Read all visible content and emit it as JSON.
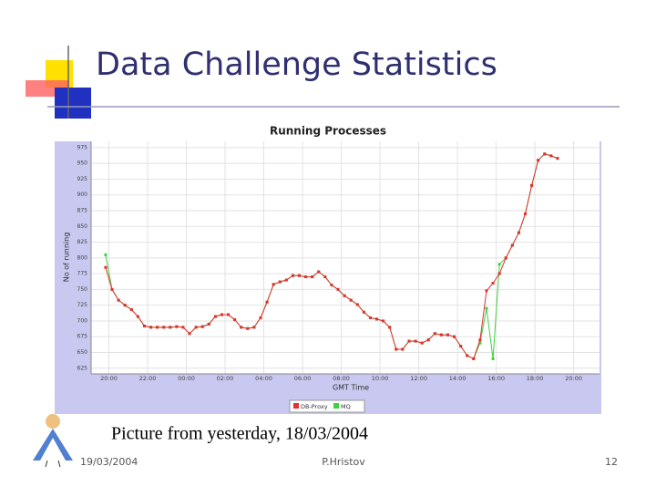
{
  "slide_title": "Data Challenge Statistics",
  "caption": "Picture from yesterday, 18/03/2004",
  "footer": {
    "date": "19/03/2004",
    "author": "P.Hristov",
    "page": "12"
  },
  "chart_data": {
    "type": "line",
    "title": "Running Processes",
    "x_label": "GMT Time",
    "y_label": "No of running",
    "x": [
      -10,
      10,
      30,
      50,
      70,
      90,
      110,
      130,
      150,
      170,
      190,
      210,
      230,
      250,
      270,
      290,
      310,
      330,
      350,
      370,
      390,
      410,
      430,
      450,
      470,
      490,
      510,
      530,
      550,
      570,
      590,
      610,
      630,
      650,
      670,
      690,
      710,
      730,
      750,
      770,
      790,
      810,
      830,
      850,
      870,
      890,
      910,
      930,
      950,
      970,
      990,
      1010,
      1030,
      1050,
      1070,
      1090,
      1110,
      1130,
      1150,
      1170,
      1190,
      1210,
      1230,
      1250,
      1270,
      1290,
      1310,
      1330,
      1350,
      1370,
      1390
    ],
    "series": [
      {
        "name": "DB-Proxy",
        "color": "#e03030",
        "values": [
          785,
          750,
          733,
          725,
          718,
          707,
          692,
          690,
          690,
          690,
          690,
          691,
          690,
          680,
          690,
          691,
          695,
          707,
          710,
          710,
          702,
          690,
          688,
          690,
          705,
          730,
          758,
          762,
          765,
          772,
          772,
          770,
          770,
          778,
          770,
          757,
          750,
          740,
          733,
          726,
          714,
          705,
          703,
          700,
          690,
          655,
          655,
          668,
          668,
          665,
          670,
          680,
          678,
          678,
          675,
          660,
          645,
          640,
          670,
          748,
          760,
          775,
          800,
          820,
          840,
          870,
          915,
          955,
          965,
          962,
          958
        ]
      },
      {
        "name": "MQ",
        "color": "#40d040",
        "values": [
          805,
          750,
          733,
          725,
          718,
          707,
          692,
          690,
          690,
          690,
          690,
          691,
          690,
          680,
          690,
          691,
          695,
          707,
          710,
          710,
          702,
          690,
          688,
          690,
          705,
          730,
          758,
          762,
          765,
          772,
          772,
          770,
          770,
          778,
          770,
          757,
          750,
          740,
          733,
          726,
          714,
          705,
          703,
          700,
          690,
          655,
          655,
          668,
          668,
          665,
          670,
          680,
          678,
          678,
          675,
          660,
          645,
          640,
          665,
          720,
          640,
          790,
          800,
          820,
          840,
          870,
          915,
          955,
          965,
          962,
          958
        ]
      }
    ],
    "xlim": [
      -55,
      1520
    ],
    "xticks": [
      {
        "value": 0,
        "label": "20:00"
      },
      {
        "value": 120,
        "label": "22:00"
      },
      {
        "value": 240,
        "label": "00:00"
      },
      {
        "value": 360,
        "label": "02:00"
      },
      {
        "value": 480,
        "label": "04:00"
      },
      {
        "value": 600,
        "label": "06:00"
      },
      {
        "value": 720,
        "label": "08:00"
      },
      {
        "value": 840,
        "label": "10:00"
      },
      {
        "value": 960,
        "label": "12:00"
      },
      {
        "value": 1080,
        "label": "14:00"
      },
      {
        "value": 1200,
        "label": "16:00"
      },
      {
        "value": 1320,
        "label": "18:00"
      },
      {
        "value": 1440,
        "label": "20:00"
      }
    ],
    "ylim": [
      616,
      985
    ],
    "yticks": [
      625,
      650,
      675,
      700,
      725,
      750,
      775,
      800,
      825,
      850,
      875,
      900,
      925,
      950,
      975
    ],
    "grid": true
  }
}
